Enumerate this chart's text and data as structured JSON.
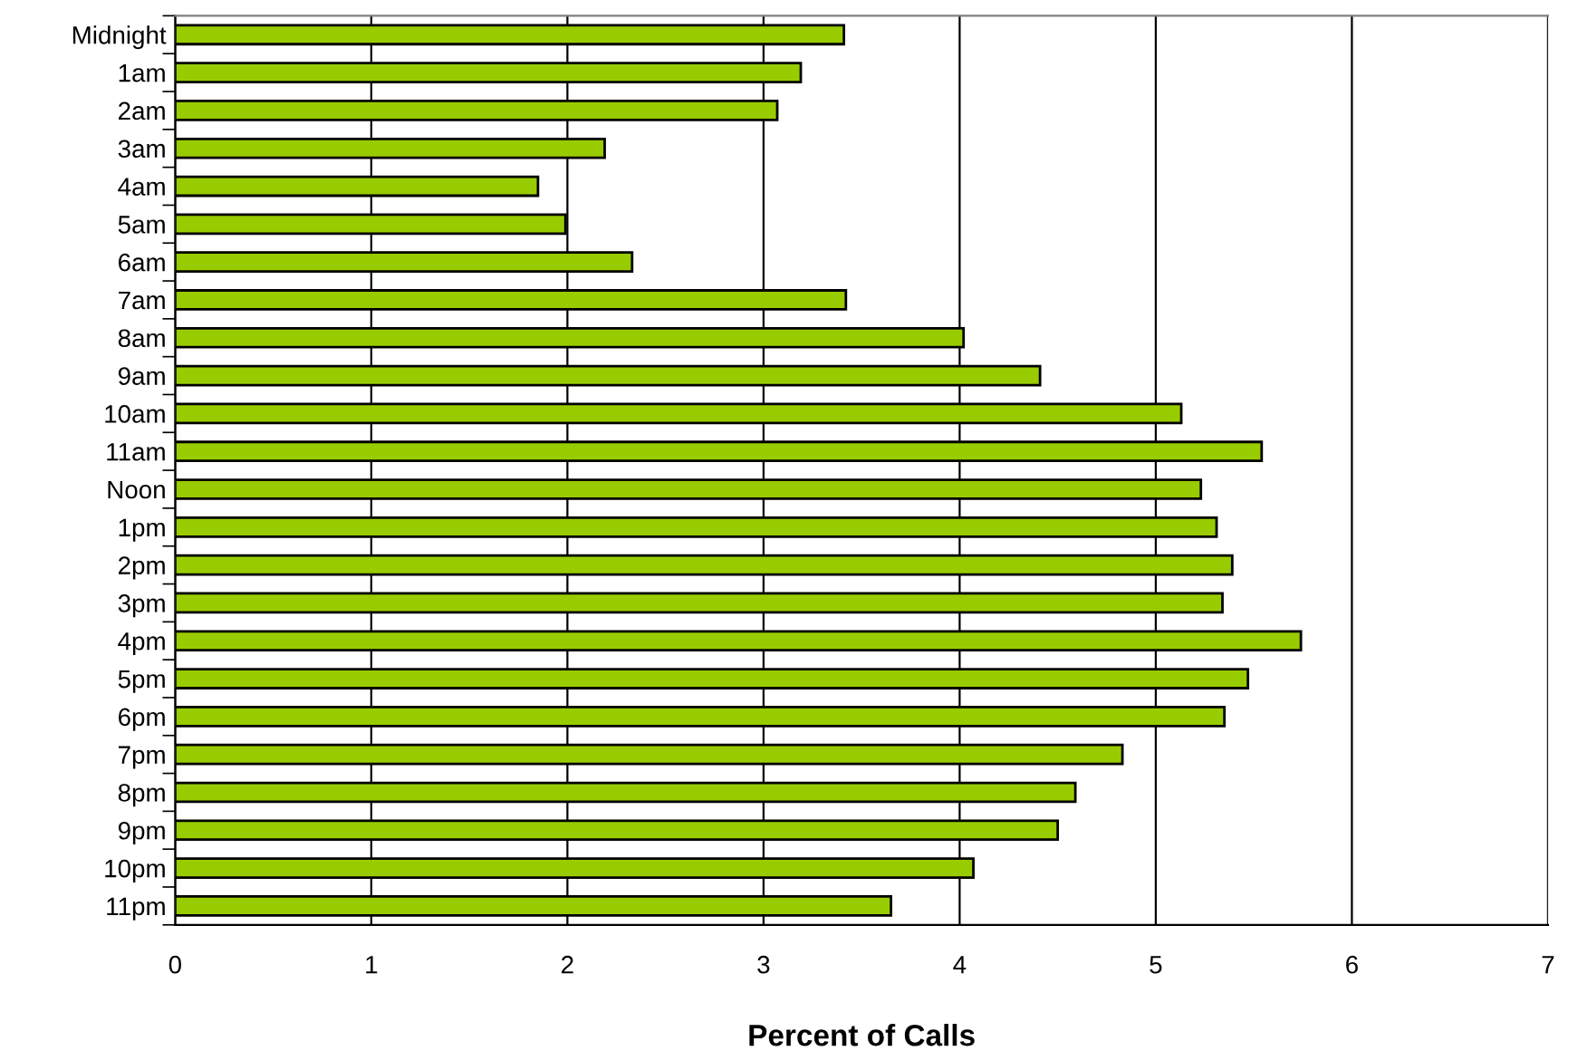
{
  "chart_data": {
    "type": "bar",
    "orientation": "horizontal",
    "xlabel": "Percent of Calls",
    "categories": [
      "Midnight",
      "1am",
      "2am",
      "3am",
      "4am",
      "5am",
      "6am",
      "7am",
      "8am",
      "9am",
      "10am",
      "11am",
      "Noon",
      "1pm",
      "2pm",
      "3pm",
      "4pm",
      "5pm",
      "6pm",
      "7pm",
      "8pm",
      "9pm",
      "10pm",
      "11pm"
    ],
    "values": [
      3.41,
      3.19,
      3.07,
      2.19,
      1.85,
      1.99,
      2.33,
      3.42,
      4.02,
      4.41,
      5.13,
      5.54,
      5.23,
      5.31,
      5.39,
      5.34,
      5.74,
      5.47,
      5.35,
      4.83,
      4.59,
      4.5,
      4.07,
      3.65
    ],
    "color": "#99cc00",
    "xlim": [
      0,
      7
    ],
    "xticks": [
      0,
      1,
      2,
      3,
      4,
      5,
      6,
      7
    ],
    "grid": "x"
  }
}
